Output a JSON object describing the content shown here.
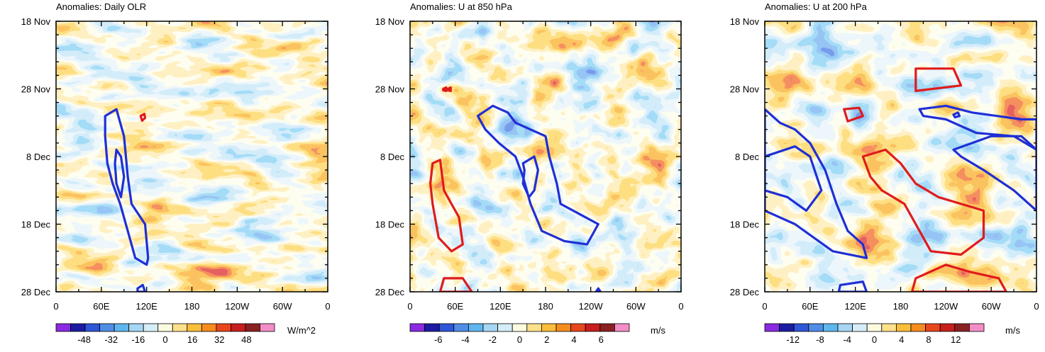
{
  "chart_data": [
    {
      "type": "heatmap",
      "title": "Anomalies: Daily OLR",
      "x_ticks": [
        "0",
        "60E",
        "120E",
        "180",
        "120W",
        "60W",
        "0"
      ],
      "y_ticks": [
        "18 Nov",
        "28 Nov",
        "8 Dec",
        "18 Dec",
        "28 Dec"
      ],
      "xlim": [
        0,
        360
      ],
      "ylim_days": [
        0,
        40
      ],
      "colorbar": {
        "units": "W/m^2",
        "levels": [
          -56,
          -48,
          -40,
          -32,
          -24,
          -16,
          -8,
          0,
          8,
          16,
          24,
          32,
          40,
          48,
          56
        ],
        "labels": [
          "-48",
          "-32",
          "-16",
          "0",
          "16",
          "32",
          "48"
        ],
        "label_values": [
          -48,
          -32,
          -16,
          0,
          16,
          32,
          48
        ]
      },
      "contours": [
        {
          "color": "#1f2fd6",
          "level": "negative",
          "points": [
            [
              65,
              14
            ],
            [
              80,
              13
            ],
            [
              90,
              17
            ],
            [
              95,
              23
            ],
            [
              100,
              27
            ],
            [
              118,
              30
            ],
            [
              122,
              35
            ],
            [
              120,
              36
            ],
            [
              105,
              35
            ],
            [
              95,
              31
            ],
            [
              85,
              27
            ],
            [
              75,
              24
            ],
            [
              68,
              21
            ],
            [
              65,
              17
            ]
          ]
        },
        {
          "color": "#1f2fd6",
          "level": "negative",
          "points": [
            [
              80,
              19
            ],
            [
              86,
              20
            ],
            [
              90,
              23
            ],
            [
              86,
              26
            ],
            [
              80,
              24
            ],
            [
              78,
              21
            ]
          ]
        },
        {
          "color": "#1f2fd6",
          "level": "negative",
          "points": [
            [
              108,
              39.5
            ],
            [
              115,
              39
            ],
            [
              118,
              40
            ],
            [
              108,
              40
            ]
          ]
        },
        {
          "color": "#e01b1b",
          "level": "positive",
          "points": [
            [
              112,
              14
            ],
            [
              117,
              13.7
            ],
            [
              118,
              14.3
            ],
            [
              114,
              14.7
            ]
          ]
        }
      ]
    },
    {
      "type": "heatmap",
      "title": "Anomalies: U at 850 hPa",
      "x_ticks": [
        "0",
        "60E",
        "120E",
        "180",
        "120W",
        "60W",
        "0"
      ],
      "y_ticks": [
        "18 Nov",
        "28 Nov",
        "8 Dec",
        "18 Dec",
        "28 Dec"
      ],
      "xlim": [
        0,
        360
      ],
      "ylim_days": [
        0,
        40
      ],
      "colorbar": {
        "units": "m/s",
        "levels": [
          -7,
          -6,
          -5,
          -4,
          -3,
          -2,
          -1,
          0,
          1,
          2,
          3,
          4,
          5,
          6,
          7
        ],
        "labels": [
          "-6",
          "-4",
          "-2",
          "0",
          "2",
          "4",
          "6"
        ],
        "label_values": [
          -6,
          -4,
          -2,
          0,
          2,
          4,
          6
        ]
      },
      "contours": [
        {
          "color": "#1f2fd6",
          "level": "negative",
          "points": [
            [
              90,
              14
            ],
            [
              110,
              12.5
            ],
            [
              130,
              13.5
            ],
            [
              140,
              15
            ],
            [
              160,
              16
            ],
            [
              180,
              17
            ],
            [
              185,
              20
            ],
            [
              195,
              24
            ],
            [
              200,
              27
            ],
            [
              225,
              28.5
            ],
            [
              250,
              30
            ],
            [
              235,
              33
            ],
            [
              205,
              32.5
            ],
            [
              175,
              31
            ],
            [
              160,
              27
            ],
            [
              150,
              23
            ],
            [
              140,
              20
            ],
            [
              118,
              18
            ],
            [
              100,
              16
            ]
          ]
        },
        {
          "color": "#1f2fd6",
          "level": "negative",
          "points": [
            [
              150,
              21
            ],
            [
              165,
              20
            ],
            [
              170,
              22
            ],
            [
              165,
              25
            ],
            [
              158,
              26
            ],
            [
              150,
              24
            ],
            [
              152,
              22
            ]
          ]
        },
        {
          "color": "#1f2fd6",
          "level": "negative",
          "points": [
            [
              250,
              39.5
            ],
            [
              253,
              40
            ],
            [
              247,
              40
            ]
          ]
        },
        {
          "color": "#e01b1b",
          "level": "positive",
          "points": [
            [
              30,
              21
            ],
            [
              40,
              20.5
            ],
            [
              45,
              25
            ],
            [
              55,
              27
            ],
            [
              65,
              29
            ],
            [
              70,
              33
            ],
            [
              55,
              34
            ],
            [
              38,
              32
            ],
            [
              30,
              27
            ],
            [
              27,
              24
            ]
          ]
        },
        {
          "color": "#e01b1b",
          "level": "positive",
          "points": [
            [
              45,
              38
            ],
            [
              70,
              38
            ],
            [
              82,
              40
            ],
            [
              40,
              40
            ]
          ]
        },
        {
          "color": "#e01b1b",
          "level": "positive",
          "points": [
            [
              44,
              10
            ],
            [
              48,
              9.8
            ],
            [
              48,
              10.3
            ],
            [
              44,
              10.2
            ]
          ]
        },
        {
          "color": "#e01b1b",
          "level": "positive",
          "points": [
            [
              50,
              10
            ],
            [
              54,
              9.8
            ],
            [
              54,
              10.3
            ],
            [
              50,
              10.2
            ]
          ]
        }
      ]
    },
    {
      "type": "heatmap",
      "title": "Anomalies: U at 200 hPa",
      "x_ticks": [
        "0",
        "60E",
        "120E",
        "180",
        "120W",
        "60W",
        "0"
      ],
      "y_ticks": [
        "18 Nov",
        "28 Nov",
        "8 Dec",
        "18 Dec",
        "28 Dec"
      ],
      "xlim": [
        0,
        360
      ],
      "ylim_days": [
        0,
        40
      ],
      "colorbar": {
        "units": "m/s",
        "levels": [
          -14,
          -12,
          -10,
          -8,
          -6,
          -4,
          -2,
          0,
          2,
          4,
          6,
          8,
          10,
          12,
          14
        ],
        "labels": [
          "-12",
          "-8",
          "-4",
          "0",
          "4",
          "8",
          "12"
        ],
        "label_values": [
          -12,
          -8,
          -4,
          0,
          4,
          8,
          12
        ]
      },
      "contours": [
        {
          "color": "#1f2fd6",
          "level": "negative",
          "points": [
            [
              0,
              13
            ],
            [
              20,
              15
            ],
            [
              40,
              16
            ],
            [
              60,
              18
            ],
            [
              80,
              22
            ],
            [
              95,
              27
            ],
            [
              110,
              31
            ],
            [
              130,
              33
            ],
            [
              135,
              35
            ],
            [
              90,
              34
            ],
            [
              40,
              30
            ],
            [
              0,
              28
            ]
          ]
        },
        {
          "color": "#1f2fd6",
          "level": "negative",
          "points": [
            [
              0,
              20
            ],
            [
              40,
              18.5
            ],
            [
              60,
              20
            ],
            [
              75,
              25
            ],
            [
              55,
              28
            ],
            [
              30,
              26
            ],
            [
              0,
              25
            ]
          ]
        },
        {
          "color": "#1f2fd6",
          "level": "negative",
          "points": [
            [
              205,
              13
            ],
            [
              240,
              12.5
            ],
            [
              275,
              13.5
            ],
            [
              340,
              14.5
            ],
            [
              360,
              14.5
            ],
            [
              360,
              19
            ],
            [
              330,
              17
            ],
            [
              280,
              16.5
            ],
            [
              240,
              14.5
            ],
            [
              210,
              14
            ]
          ]
        },
        {
          "color": "#1f2fd6",
          "level": "negative",
          "points": [
            [
              250,
              19
            ],
            [
              300,
              17
            ],
            [
              340,
              17
            ],
            [
              360,
              19
            ],
            [
              360,
              28
            ],
            [
              330,
              25
            ],
            [
              290,
              22
            ],
            [
              260,
              20
            ]
          ]
        },
        {
          "color": "#1f2fd6",
          "level": "negative",
          "points": [
            [
              250,
              13.8
            ],
            [
              256,
              13.5
            ],
            [
              258,
              14
            ],
            [
              252,
              14.2
            ]
          ]
        },
        {
          "color": "#1f2fd6",
          "level": "negative",
          "points": [
            [
              100,
              39
            ],
            [
              130,
              38.5
            ],
            [
              135,
              40
            ],
            [
              98,
              40
            ]
          ]
        },
        {
          "color": "#e01b1b",
          "level": "positive",
          "points": [
            [
              200,
              7
            ],
            [
              250,
              7
            ],
            [
              260,
              9.5
            ],
            [
              200,
              10.3
            ]
          ]
        },
        {
          "color": "#e01b1b",
          "level": "positive",
          "points": [
            [
              105,
              13
            ],
            [
              125,
              12.8
            ],
            [
              130,
              14
            ],
            [
              110,
              14.8
            ]
          ]
        },
        {
          "color": "#e01b1b",
          "level": "positive",
          "points": [
            [
              130,
              20
            ],
            [
              160,
              19
            ],
            [
              180,
              21
            ],
            [
              200,
              24
            ],
            [
              230,
              26
            ],
            [
              290,
              28
            ],
            [
              290,
              32
            ],
            [
              260,
              34.5
            ],
            [
              220,
              34
            ],
            [
              200,
              30
            ],
            [
              185,
              27
            ],
            [
              170,
              26
            ],
            [
              155,
              25
            ],
            [
              140,
              23
            ]
          ]
        },
        {
          "color": "#e01b1b",
          "level": "positive",
          "points": [
            [
              200,
              38
            ],
            [
              240,
              36
            ],
            [
              270,
              37
            ],
            [
              310,
              38
            ],
            [
              320,
              40
            ],
            [
              195,
              40
            ]
          ]
        }
      ]
    }
  ]
}
